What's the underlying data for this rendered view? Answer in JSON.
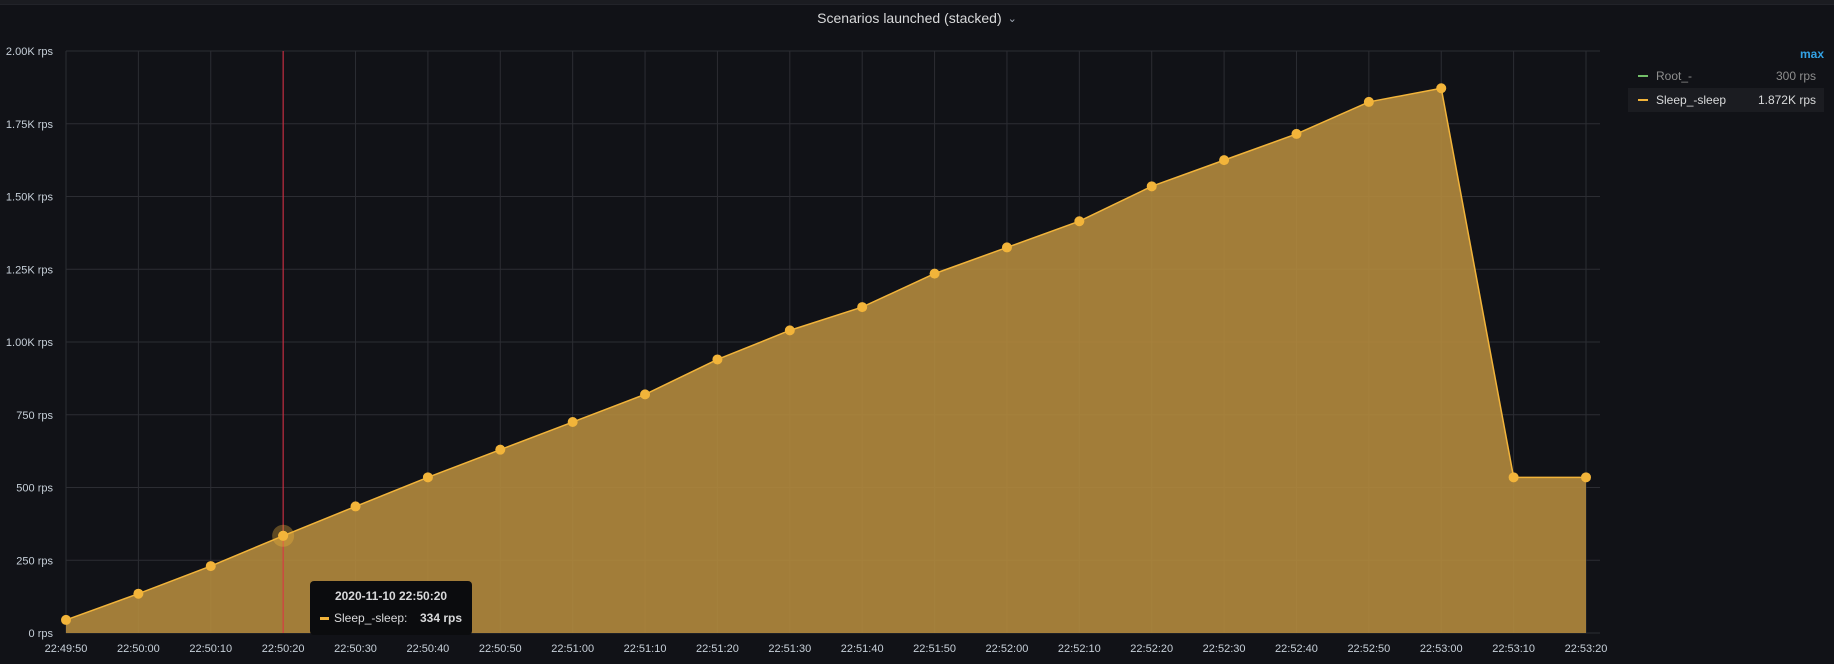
{
  "panel": {
    "title": "Scenarios launched (stacked)",
    "menu_icon": "chevron-down-icon"
  },
  "colors": {
    "background": "#111217",
    "series_fill": "#b38a3d",
    "series_line": "#f2b43a",
    "crosshair": "#e02f44",
    "root_series": "#73bf69",
    "legend_header": "#33a2e5"
  },
  "legend": {
    "header": "max",
    "items": [
      {
        "name": "Root_-",
        "value": "300 rps",
        "color": "#73bf69"
      },
      {
        "name": "Sleep_-sleep",
        "value": "1.872K rps",
        "color": "#f2b43a"
      }
    ]
  },
  "tooltip": {
    "time": "2020-11-10 22:50:20",
    "series": "Sleep_-sleep:",
    "value": "334 rps"
  },
  "chart_data": {
    "type": "area",
    "stacked": true,
    "title": "Scenarios launched (stacked)",
    "grid": true,
    "legend_placement": "right",
    "ylim": [
      0,
      2000
    ],
    "y_ticks": [
      0,
      250,
      500,
      750,
      1000,
      1250,
      1500,
      1750,
      2000
    ],
    "y_tick_labels": [
      "0 rps",
      "250 rps",
      "500 rps",
      "750 rps",
      "1.00K rps",
      "1.25K rps",
      "1.50K rps",
      "1.75K rps",
      "2.00K rps"
    ],
    "x": [
      "22:49:50",
      "22:50:00",
      "22:50:10",
      "22:50:20",
      "22:50:30",
      "22:50:40",
      "22:50:50",
      "22:51:00",
      "22:51:10",
      "22:51:20",
      "22:51:30",
      "22:51:40",
      "22:51:50",
      "22:52:00",
      "22:52:10",
      "22:52:20",
      "22:52:30",
      "22:52:40",
      "22:52:50",
      "22:53:00",
      "22:53:10",
      "22:53:20"
    ],
    "series": [
      {
        "name": "Sleep_-sleep",
        "values": [
          45,
          135,
          230,
          334,
          435,
          535,
          630,
          725,
          820,
          940,
          1040,
          1120,
          1235,
          1325,
          1415,
          1535,
          1625,
          1715,
          1825,
          1872,
          535,
          535
        ]
      }
    ],
    "hover": {
      "x": "22:50:20",
      "series": "Sleep_-sleep",
      "value": 334
    }
  }
}
